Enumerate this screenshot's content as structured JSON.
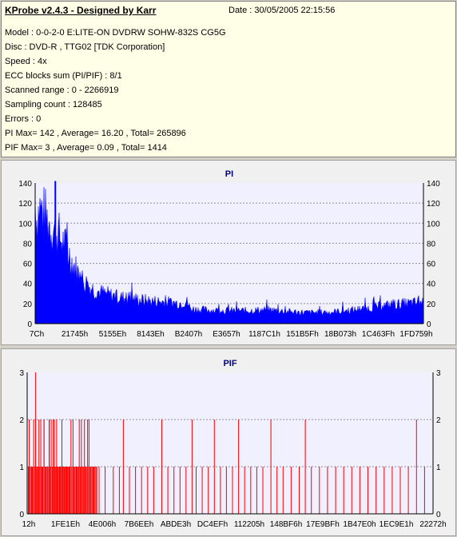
{
  "info": {
    "title": "KProbe v2.4.3 - Designed by Karr",
    "date": "Date : 30/05/2005 22:15:56",
    "lines": [
      "Model : 0-0-2-0 E:LITE-ON DVDRW SOHW-832S  CG5G",
      "Disc : DVD-R , TTG02 [TDK Corporation]",
      "Speed : 4x",
      "ECC blocks sum (PI/PIF) : 8/1",
      "Scanned range : 0 - 2266919",
      "Sampling count : 128485",
      "Errors : 0",
      "PI Max= 142 , Average= 16.20 , Total= 265896",
      "PIF Max= 3 , Average= 0.09 , Total= 1414"
    ]
  },
  "chart_data": [
    {
      "type": "area",
      "title": "PI",
      "ylim": [
        0,
        140
      ],
      "yticks": [
        0,
        20,
        40,
        60,
        80,
        100,
        120,
        140
      ],
      "xticks": [
        "7Ch",
        "21745h",
        "5155Eh",
        "8143Eh",
        "B2407h",
        "E3657h",
        "1187C1h",
        "151B5Fh",
        "18B073h",
        "1C463Fh",
        "1FD759h"
      ],
      "grid": true,
      "color": "#0000ff",
      "max": 142,
      "envelope": [
        [
          0,
          138
        ],
        [
          0.5,
          110
        ],
        [
          1,
          125
        ],
        [
          2,
          118
        ],
        [
          3,
          112
        ],
        [
          4,
          105
        ],
        [
          5,
          100
        ],
        [
          6,
          95
        ],
        [
          7,
          88
        ],
        [
          8,
          80
        ],
        [
          9,
          72
        ],
        [
          10,
          62
        ],
        [
          11,
          55
        ],
        [
          12,
          48
        ],
        [
          13,
          44
        ],
        [
          14,
          40
        ],
        [
          15,
          37
        ],
        [
          16,
          35
        ],
        [
          18,
          32
        ],
        [
          20,
          30
        ],
        [
          22,
          28
        ],
        [
          25,
          27
        ],
        [
          28,
          25
        ],
        [
          31,
          24
        ],
        [
          34,
          23
        ],
        [
          37,
          22
        ],
        [
          39,
          24
        ],
        [
          40,
          16
        ],
        [
          43,
          15
        ],
        [
          48,
          14
        ],
        [
          55,
          14
        ],
        [
          60,
          15
        ],
        [
          65,
          13
        ],
        [
          70,
          12
        ],
        [
          75,
          12
        ],
        [
          80,
          14
        ],
        [
          85,
          16
        ],
        [
          88,
          18
        ],
        [
          91,
          20
        ],
        [
          94,
          21
        ],
        [
          97,
          22
        ],
        [
          100,
          23
        ]
      ]
    },
    {
      "type": "bar",
      "title": "PIF",
      "ylim": [
        0,
        3
      ],
      "yticks": [
        0,
        1,
        2,
        3
      ],
      "xticks": [
        "12h",
        "1FE1Eh",
        "4E006h",
        "7B6EEh",
        "ABDE3h",
        "DC4EFh",
        "112205h",
        "148BF6h",
        "17E9BFh",
        "1B47E0h",
        "1EC9E1h",
        "22272h"
      ],
      "grid": true,
      "color": "#ff0000",
      "max": 3,
      "spikes": [
        [
          0.2,
          2
        ],
        [
          0.9,
          1
        ],
        [
          1.3,
          2
        ],
        [
          1.8,
          3
        ],
        [
          2.2,
          1
        ],
        [
          2.6,
          2
        ],
        [
          3.1,
          1
        ],
        [
          3.5,
          1
        ],
        [
          3.9,
          2
        ],
        [
          4.3,
          1
        ],
        [
          4.8,
          1
        ],
        [
          5.2,
          2
        ],
        [
          5.6,
          1
        ],
        [
          6.1,
          1
        ],
        [
          6.6,
          1
        ],
        [
          7.0,
          2
        ],
        [
          7.4,
          1
        ],
        [
          7.9,
          1
        ],
        [
          8.3,
          2
        ],
        [
          8.8,
          1
        ],
        [
          9.3,
          1
        ],
        [
          9.7,
          1
        ],
        [
          10.2,
          1
        ],
        [
          10.8,
          1
        ],
        [
          11.3,
          1
        ],
        [
          11.9,
          1
        ],
        [
          12.5,
          1
        ],
        [
          13.2,
          1
        ],
        [
          14.0,
          1
        ],
        [
          15.0,
          2
        ],
        [
          16.1,
          1
        ],
        [
          17.5,
          1
        ],
        [
          19.0,
          1
        ],
        [
          21.0,
          1
        ],
        [
          22.5,
          1
        ],
        [
          23.5,
          2
        ],
        [
          25.0,
          1
        ],
        [
          26.5,
          1
        ],
        [
          28.0,
          1
        ],
        [
          29.5,
          1
        ],
        [
          31.0,
          1
        ],
        [
          33.0,
          2
        ],
        [
          34.5,
          1
        ],
        [
          36.0,
          1
        ],
        [
          37.5,
          1
        ],
        [
          39.0,
          1
        ],
        [
          40.5,
          2
        ],
        [
          41.5,
          1
        ],
        [
          43.0,
          1
        ],
        [
          44.5,
          1
        ],
        [
          46.0,
          2
        ],
        [
          47.5,
          1
        ],
        [
          49.0,
          1
        ],
        [
          50.5,
          1
        ],
        [
          52.0,
          2
        ],
        [
          53.5,
          1
        ],
        [
          55.0,
          1
        ],
        [
          56.5,
          1
        ],
        [
          58.0,
          1
        ],
        [
          60.0,
          2
        ],
        [
          61.5,
          1
        ],
        [
          63.0,
          1
        ],
        [
          65.0,
          1
        ],
        [
          67.0,
          1
        ],
        [
          68.5,
          2
        ],
        [
          70.0,
          1
        ],
        [
          72.0,
          1
        ],
        [
          74.0,
          1
        ],
        [
          76.0,
          1
        ],
        [
          78.0,
          1
        ],
        [
          80.0,
          1
        ],
        [
          82.0,
          1
        ],
        [
          84.0,
          1
        ],
        [
          86.0,
          1
        ],
        [
          88.0,
          1
        ],
        [
          90.0,
          1
        ],
        [
          92.0,
          1
        ],
        [
          94.0,
          1
        ],
        [
          96.0,
          2
        ],
        [
          98.0,
          1
        ]
      ]
    }
  ]
}
